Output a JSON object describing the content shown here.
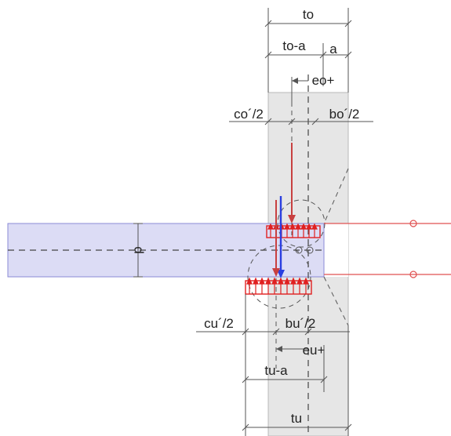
{
  "labels": {
    "to": "to",
    "to_minus_a": "to-a",
    "a": "a",
    "eo_plus": "eo+",
    "co_half": "co´/2",
    "bo_half": "bo´/2",
    "d": "d",
    "cu_half": "cu´/2",
    "bu_half": "bu´/2",
    "eu_plus": "eu+",
    "tu_minus_a": "tu-a",
    "tu": "tu"
  },
  "colors": {
    "column_fill": "#e6e6e6",
    "beam_fill": "#dcdcf5",
    "beam_stroke": "#8a8ad6",
    "stress_red": "#e02020",
    "tie_line": "#e05050",
    "force_blue": "#2b3fe0",
    "force_red": "#c84040"
  }
}
